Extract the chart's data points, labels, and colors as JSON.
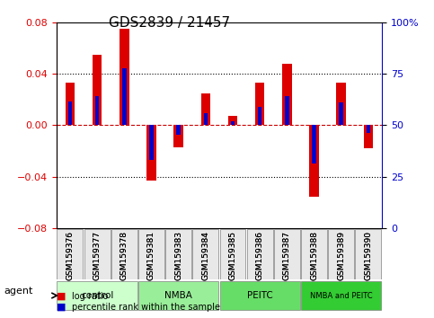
{
  "title": "GDS2839 / 21457",
  "samples": [
    "GSM159376",
    "GSM159377",
    "GSM159378",
    "GSM159381",
    "GSM159383",
    "GSM159384",
    "GSM159385",
    "GSM159386",
    "GSM159387",
    "GSM159388",
    "GSM159389",
    "GSM159390"
  ],
  "log_ratio": [
    0.033,
    0.055,
    0.075,
    -0.043,
    -0.017,
    0.025,
    0.007,
    0.033,
    0.048,
    -0.056,
    0.033,
    -0.018
  ],
  "percentile": [
    0.615,
    0.64,
    0.775,
    0.33,
    0.455,
    0.56,
    0.52,
    0.59,
    0.64,
    0.315,
    0.61,
    0.46
  ],
  "groups": [
    {
      "label": "control",
      "start": 0,
      "end": 3,
      "color": "#ccffcc"
    },
    {
      "label": "NMBA",
      "start": 3,
      "end": 6,
      "color": "#99ee99"
    },
    {
      "label": "PEITC",
      "start": 6,
      "end": 9,
      "color": "#66dd66"
    },
    {
      "label": "NMBA and PEITC",
      "start": 9,
      "end": 12,
      "color": "#33cc33"
    }
  ],
  "ylim": [
    -0.08,
    0.08
  ],
  "y2lim": [
    0,
    100
  ],
  "yticks": [
    -0.08,
    -0.04,
    0.0,
    0.04,
    0.08
  ],
  "y2ticks": [
    0,
    25,
    50,
    75,
    100
  ],
  "bar_color_red": "#dd0000",
  "bar_color_blue": "#0000cc",
  "bar_width": 0.35,
  "percentile_bar_width": 0.15
}
